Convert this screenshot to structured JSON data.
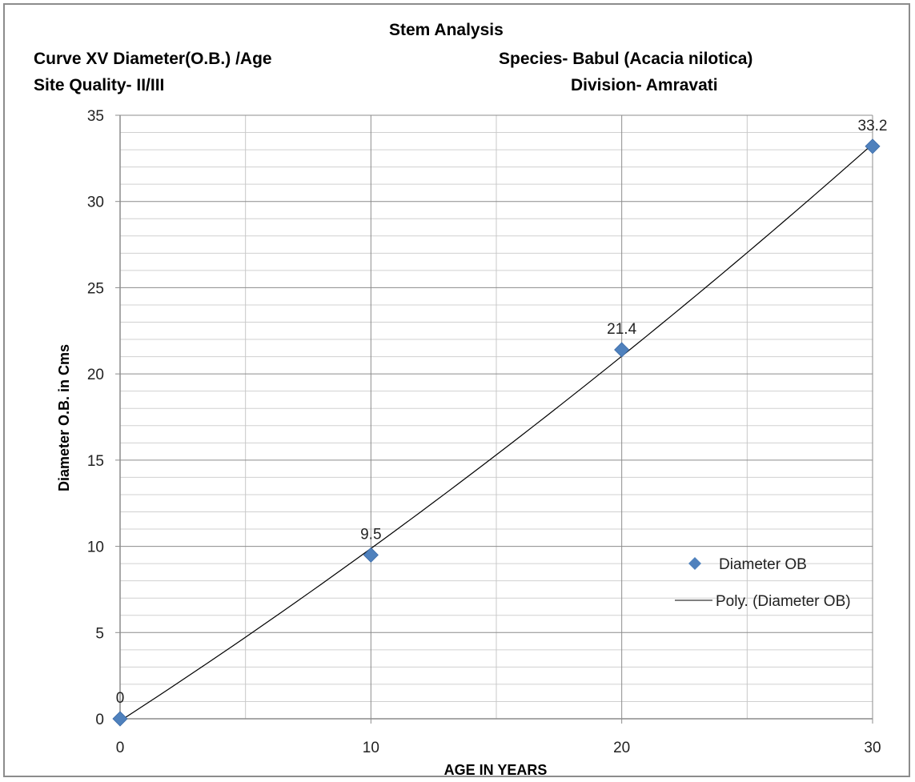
{
  "header": {
    "title": "Stem Analysis",
    "curve": "Curve XV  Diameter(O.B.) /Age",
    "site_quality": "Site Quality- II/III",
    "species": "Species- Babul (Acacia nilotica)",
    "division": "Division- Amravati"
  },
  "chart_data": {
    "type": "scatter",
    "xlabel": "AGE IN YEARS",
    "ylabel": "Diameter O.B. in Cms",
    "xlim": [
      0,
      30
    ],
    "ylim": [
      0,
      35
    ],
    "x_major_ticks": [
      0,
      10,
      20,
      30
    ],
    "y_major_ticks": [
      0,
      5,
      10,
      15,
      20,
      25,
      30,
      35
    ],
    "grid": true,
    "legend_position": "right",
    "series": [
      {
        "name": "Diameter OB",
        "x": [
          0,
          10,
          20,
          30
        ],
        "values": [
          0,
          9.5,
          21.4,
          33.2
        ],
        "labels": [
          "0",
          "9.5",
          "21.4",
          "33.2"
        ],
        "marker": "diamond",
        "color": "#4f81bd"
      }
    ],
    "trendline": {
      "name": "Poly. (Diameter OB)",
      "type": "polynomial",
      "color": "#000000"
    }
  }
}
